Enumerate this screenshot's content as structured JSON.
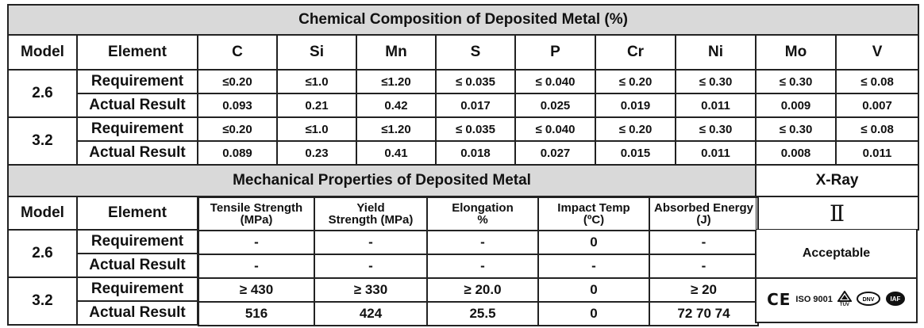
{
  "chem": {
    "title": "Chemical Composition of Deposited Metal (%)",
    "headers": [
      "Model",
      "Element",
      "C",
      "Si",
      "Mn",
      "S",
      "P",
      "Cr",
      "Ni",
      "Mo",
      "V"
    ],
    "rows": [
      {
        "model": "2.6",
        "label": "Requirement",
        "values": [
          "≤0.20",
          "≤1.0",
          "≤1.20",
          "≤ 0.035",
          "≤ 0.040",
          "≤ 0.20",
          "≤ 0.30",
          "≤ 0.30",
          "≤ 0.08"
        ]
      },
      {
        "label": "Actual Result",
        "values": [
          "0.093",
          "0.21",
          "0.42",
          "0.017",
          "0.025",
          "0.019",
          "0.011",
          "0.009",
          "0.007"
        ]
      },
      {
        "model": "3.2",
        "label": "Requirement",
        "values": [
          "≤0.20",
          "≤1.0",
          "≤1.20",
          "≤ 0.035",
          "≤ 0.040",
          "≤ 0.20",
          "≤ 0.30",
          "≤ 0.30",
          "≤ 0.08"
        ]
      },
      {
        "label": "Actual Result",
        "values": [
          "0.089",
          "0.23",
          "0.41",
          "0.018",
          "0.027",
          "0.015",
          "0.011",
          "0.008",
          "0.011"
        ]
      }
    ]
  },
  "mech": {
    "title": "Mechanical Properties of Deposited Metal",
    "xray_title": "X-Ray",
    "xray_grade": "Ⅱ",
    "headers": {
      "model": "Model",
      "element": "Element",
      "tensile": [
        "Tensile Strength",
        "(MPa)"
      ],
      "yield": [
        "Yield",
        "Strength (MPa)"
      ],
      "elong": [
        "Elongation",
        "%"
      ],
      "impact": [
        "Impact Temp",
        "(ºC)"
      ],
      "energy": [
        "Absorbed Energy",
        "(J)"
      ]
    },
    "rows": [
      {
        "model": "2.6",
        "label": "Requirement",
        "values": [
          "-",
          "-",
          "-",
          "0",
          "-"
        ]
      },
      {
        "label": "Actual Result",
        "values": [
          "-",
          "-",
          "-",
          "-",
          "-"
        ]
      },
      {
        "model": "3.2",
        "label": "Requirement",
        "values": [
          "≥ 430",
          "≥ 330",
          "≥ 20.0",
          "0",
          "≥ 20"
        ]
      },
      {
        "label": "Actual Result",
        "values": [
          "516",
          "424",
          "25.5",
          "0",
          "72  70  74"
        ]
      }
    ],
    "acceptable": "Acceptable",
    "certs": {
      "ce": "CE",
      "iso": "ISO 9001",
      "tuv": "TÜV",
      "dnv": "DNV",
      "iaf": "IAF"
    }
  }
}
